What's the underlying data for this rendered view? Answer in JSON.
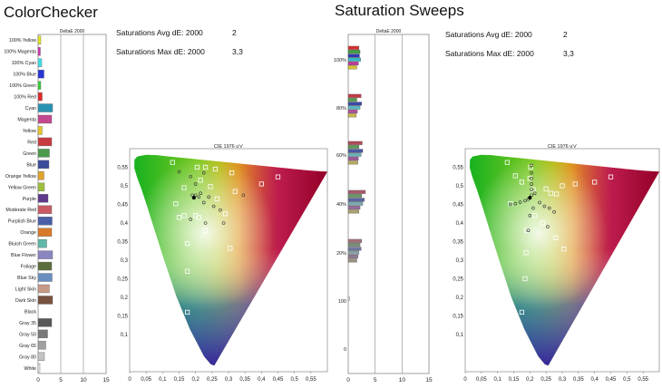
{
  "left_title": "ColorChecker",
  "right_title": "Saturation Sweeps",
  "left_stats": [
    {
      "label": "Saturations Avg dE: 2000",
      "value": "2"
    },
    {
      "label": "Saturations Max dE: 2000",
      "value": "3,3"
    }
  ],
  "right_stats": [
    {
      "label": "Saturations Avg dE: 2000",
      "value": "2"
    },
    {
      "label": "Saturations Max dE: 2000",
      "value": "3,3"
    }
  ],
  "chart_data": [
    {
      "type": "bar",
      "orientation": "horizontal",
      "title": "DeltaE 2000",
      "xlim": [
        0,
        15
      ],
      "xticks": [
        "0",
        "5",
        "10",
        "15"
      ],
      "categories": [
        "100% Yellow",
        "100% Magenta",
        "100% Cyan",
        "100% Blue",
        "100% Green",
        "100% Red",
        "Cyan",
        "Magenta",
        "Yellow",
        "Red",
        "Green",
        "Blue",
        "Orange Yellow",
        "Yellow Green",
        "Purple",
        "Moderate Red",
        "Purplish Blue",
        "Orange",
        "Bluish Green",
        "Blue Flower",
        "Foliage",
        "Blue Sky",
        "Light Skin",
        "Dark Skin",
        "Black",
        "Gray 35",
        "Gray 50",
        "Gray 65",
        "Gray 80",
        "White"
      ],
      "values": [
        0.6,
        0.5,
        0.8,
        1.3,
        0.6,
        0.9,
        3.2,
        3.0,
        0.9,
        3.0,
        2.5,
        2.4,
        1.3,
        1.4,
        2.2,
        3.0,
        3.1,
        3.0,
        1.9,
        3.2,
        3.0,
        3.1,
        2.5,
        3.2,
        0,
        3.0,
        2.1,
        1.7,
        1.4,
        0.4
      ],
      "colors": [
        "#e8e61e",
        "#d62fb0",
        "#3fe0e6",
        "#2834d6",
        "#36d236",
        "#e02a2a",
        "#2a93b2",
        "#c3488f",
        "#e8c42a",
        "#c83b40",
        "#4c9a4b",
        "#3b4a9a",
        "#e3a32a",
        "#9cc03a",
        "#5e3a8c",
        "#c95a64",
        "#4a5fa8",
        "#d9792a",
        "#5fb8a8",
        "#8a86c0",
        "#5b6d3a",
        "#6a8fbf",
        "#c79a86",
        "#76523f",
        "#000000",
        "#585858",
        "#7a7a7a",
        "#a0a0a0",
        "#c4c4c4",
        "#ececec"
      ]
    },
    {
      "type": "scatter",
      "title": "CIE 1976 u'v'",
      "xlim": [
        0,
        0.6
      ],
      "ylim": [
        0,
        0.6
      ],
      "xticks": [
        "0",
        "0,05",
        "0,1",
        "0,15",
        "0,2",
        "0,25",
        "0,3",
        "0,35",
        "0,4",
        "0,45",
        "0,5",
        "0,55"
      ],
      "yticks": [
        "0,1",
        "0,15",
        "0,2",
        "0,25",
        "0,3",
        "0,35",
        "0,4",
        "0,45",
        "0,5",
        "0,55"
      ],
      "targets": [
        [
          0.13,
          0.563
        ],
        [
          0.205,
          0.55
        ],
        [
          0.23,
          0.55
        ],
        [
          0.26,
          0.545
        ],
        [
          0.31,
          0.535
        ],
        [
          0.215,
          0.515
        ],
        [
          0.245,
          0.498
        ],
        [
          0.4,
          0.505
        ],
        [
          0.45,
          0.524
        ],
        [
          0.32,
          0.485
        ],
        [
          0.165,
          0.495
        ],
        [
          0.265,
          0.465
        ],
        [
          0.14,
          0.452
        ],
        [
          0.165,
          0.42
        ],
        [
          0.2,
          0.42
        ],
        [
          0.21,
          0.415
        ],
        [
          0.15,
          0.415
        ],
        [
          0.29,
          0.425
        ],
        [
          0.23,
          0.38
        ],
        [
          0.305,
          0.332
        ],
        [
          0.175,
          0.345
        ],
        [
          0.175,
          0.27
        ],
        [
          0.175,
          0.16
        ]
      ],
      "measured": [
        [
          0.15,
          0.538
        ],
        [
          0.185,
          0.525
        ],
        [
          0.2,
          0.505
        ],
        [
          0.225,
          0.535
        ],
        [
          0.215,
          0.48
        ],
        [
          0.24,
          0.47
        ],
        [
          0.19,
          0.475
        ],
        [
          0.225,
          0.455
        ],
        [
          0.255,
          0.445
        ],
        [
          0.185,
          0.41
        ],
        [
          0.23,
          0.4
        ],
        [
          0.345,
          0.475
        ],
        [
          0.275,
          0.435
        ],
        [
          0.285,
          0.4
        ],
        [
          0.21,
          0.47
        ],
        [
          0.2,
          0.475
        ]
      ],
      "white_point": [
        0.195,
        0.468
      ]
    },
    {
      "type": "bar",
      "orientation": "horizontal",
      "title": "DeltaE 2000",
      "xlim": [
        0,
        15
      ],
      "xticks": [
        "0",
        "5",
        "10",
        "15"
      ],
      "group_labels": [
        "100%",
        "80%",
        "60%",
        "40%",
        "20%",
        "100",
        "0"
      ],
      "groups": [
        {
          "values": [
            2.0,
            2.2,
            2.1,
            2.3,
            1.9,
            1.6
          ],
          "colors": [
            "#d63030",
            "#40a040",
            "#2c3ab0",
            "#36b8c8",
            "#c03a9c",
            "#d8c030"
          ]
        },
        {
          "values": [
            2.4,
            1.6,
            2.5,
            2.2,
            1.7,
            1.5
          ],
          "colors": [
            "#c43a48",
            "#58a050",
            "#3a4aa8",
            "#5ab8c0",
            "#b0509a",
            "#c8b448"
          ]
        },
        {
          "values": [
            2.6,
            2.0,
            2.7,
            2.4,
            1.9,
            1.8
          ],
          "colors": [
            "#b04a58",
            "#609a58",
            "#4a56a0",
            "#6ab0b8",
            "#a0589a",
            "#b8a860"
          ]
        },
        {
          "values": [
            3.2,
            2.5,
            3.0,
            2.7,
            2.2,
            2.0
          ],
          "colors": [
            "#a85a6a",
            "#6a9a68",
            "#5a64a0",
            "#7aa8b0",
            "#9a6a9a",
            "#a8a070"
          ]
        },
        {
          "values": [
            2.5,
            2.2,
            2.4,
            2.0,
            1.8,
            1.6
          ],
          "colors": [
            "#a07078",
            "#7a9078",
            "#7078a0",
            "#88a0a8",
            "#907890",
            "#989080"
          ]
        },
        {
          "values": [
            0.3
          ],
          "colors": [
            "#e8e8e8"
          ]
        },
        {
          "values": [],
          "colors": []
        }
      ]
    },
    {
      "type": "scatter",
      "title": "CIE 1976 u'v'",
      "xlim": [
        0,
        0.6
      ],
      "ylim": [
        0,
        0.6
      ],
      "xticks": [
        "0",
        "0,05",
        "0,1",
        "0,15",
        "0,2",
        "0,25",
        "0,3",
        "0,35",
        "0,4",
        "0,45",
        "0,5",
        "0,55"
      ],
      "yticks": [
        "0,1",
        "0,15",
        "0,2",
        "0,25",
        "0,3",
        "0,35",
        "0,4",
        "0,45",
        "0,5",
        "0,55"
      ],
      "targets": [
        [
          0.13,
          0.563
        ],
        [
          0.155,
          0.527
        ],
        [
          0.175,
          0.51
        ],
        [
          0.202,
          0.55
        ],
        [
          0.2,
          0.52
        ],
        [
          0.3,
          0.5
        ],
        [
          0.34,
          0.505
        ],
        [
          0.45,
          0.524
        ],
        [
          0.4,
          0.51
        ],
        [
          0.25,
          0.492
        ],
        [
          0.265,
          0.48
        ],
        [
          0.282,
          0.478
        ],
        [
          0.21,
          0.49
        ],
        [
          0.24,
          0.4
        ],
        [
          0.215,
          0.42
        ],
        [
          0.28,
          0.36
        ],
        [
          0.305,
          0.33
        ],
        [
          0.19,
          0.38
        ],
        [
          0.188,
          0.32
        ],
        [
          0.185,
          0.25
        ],
        [
          0.175,
          0.16
        ],
        [
          0.14,
          0.452
        ]
      ],
      "measured": [
        [
          0.205,
          0.555
        ],
        [
          0.205,
          0.535
        ],
        [
          0.205,
          0.52
        ],
        [
          0.205,
          0.505
        ],
        [
          0.205,
          0.49
        ],
        [
          0.205,
          0.475
        ],
        [
          0.14,
          0.45
        ],
        [
          0.155,
          0.452
        ],
        [
          0.17,
          0.456
        ],
        [
          0.185,
          0.46
        ],
        [
          0.195,
          0.464
        ],
        [
          0.23,
          0.455
        ],
        [
          0.245,
          0.445
        ],
        [
          0.26,
          0.44
        ],
        [
          0.275,
          0.43
        ],
        [
          0.255,
          0.39
        ],
        [
          0.21,
          0.44
        ],
        [
          0.2,
          0.42
        ],
        [
          0.195,
          0.38
        ],
        [
          0.215,
          0.48
        ]
      ],
      "white_point": [
        0.2,
        0.468
      ]
    }
  ]
}
